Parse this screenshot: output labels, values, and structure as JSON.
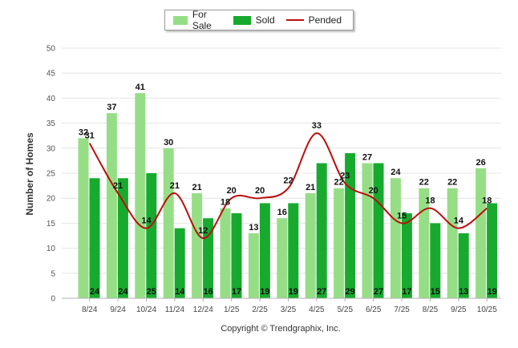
{
  "chart_data": {
    "type": "bar",
    "ylabel": "Number of Homes",
    "xlabel": "",
    "ylim": [
      0,
      50
    ],
    "yticks": [
      0,
      5,
      10,
      15,
      20,
      25,
      30,
      35,
      40,
      45,
      50
    ],
    "categories": [
      "8/24",
      "9/24",
      "10/24",
      "11/24",
      "12/24",
      "1/25",
      "2/25",
      "3/25",
      "4/25",
      "5/25",
      "6/25",
      "7/25",
      "8/25",
      "9/25",
      "10/25"
    ],
    "series": [
      {
        "name": "For Sale",
        "kind": "bar",
        "color": "#96de86",
        "values": [
          32,
          37,
          41,
          30,
          21,
          18,
          13,
          16,
          21,
          22,
          27,
          24,
          22,
          22,
          26
        ]
      },
      {
        "name": "Sold",
        "kind": "bar",
        "color": "#17aa2e",
        "values": [
          24,
          24,
          25,
          14,
          16,
          17,
          19,
          19,
          27,
          29,
          27,
          17,
          15,
          13,
          19
        ]
      },
      {
        "name": "Pended",
        "kind": "line",
        "color": "#bb0e0e",
        "values": [
          31,
          21,
          14,
          21,
          12,
          20,
          20,
          22,
          33,
          23,
          20,
          15,
          18,
          14,
          18
        ]
      }
    ],
    "grid": true,
    "legend": "top-center"
  },
  "footer": {
    "copyright": "Copyright © Trendgraphix, Inc."
  }
}
